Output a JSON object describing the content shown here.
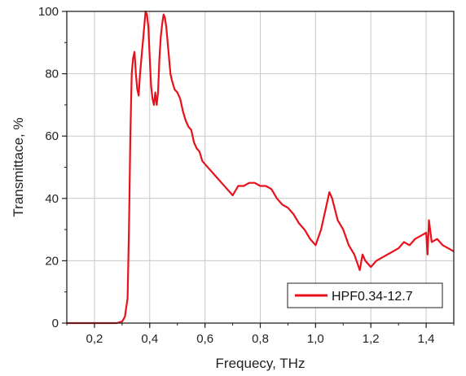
{
  "chart_data": {
    "type": "line",
    "title": "",
    "xlabel": "Frequecy, THz",
    "ylabel": "Transmittace, %",
    "xlim": [
      0.1,
      1.5
    ],
    "ylim": [
      0,
      100
    ],
    "x_ticks": [
      0.2,
      0.4,
      0.6,
      0.8,
      1.0,
      1.2,
      1.4
    ],
    "x_tick_labels": [
      "0,2",
      "0,4",
      "0,6",
      "0,8",
      "1,0",
      "1,2",
      "1,4"
    ],
    "y_ticks": [
      0,
      20,
      40,
      60,
      80,
      100
    ],
    "y_tick_labels": [
      "0",
      "20",
      "40",
      "60",
      "80",
      "100"
    ],
    "grid": true,
    "legend_position": "bottom-right",
    "series": [
      {
        "name": "HPF0.34-12.7",
        "color": "#e8101a",
        "x": [
          0.1,
          0.15,
          0.2,
          0.25,
          0.28,
          0.3,
          0.31,
          0.32,
          0.325,
          0.33,
          0.335,
          0.34,
          0.345,
          0.35,
          0.355,
          0.36,
          0.365,
          0.37,
          0.375,
          0.38,
          0.385,
          0.39,
          0.395,
          0.4,
          0.405,
          0.41,
          0.415,
          0.42,
          0.425,
          0.43,
          0.435,
          0.44,
          0.445,
          0.45,
          0.455,
          0.46,
          0.465,
          0.47,
          0.475,
          0.48,
          0.49,
          0.5,
          0.51,
          0.52,
          0.53,
          0.54,
          0.55,
          0.56,
          0.57,
          0.58,
          0.59,
          0.6,
          0.62,
          0.64,
          0.66,
          0.68,
          0.7,
          0.72,
          0.74,
          0.76,
          0.78,
          0.8,
          0.82,
          0.84,
          0.86,
          0.88,
          0.9,
          0.92,
          0.94,
          0.96,
          0.98,
          1.0,
          1.02,
          1.04,
          1.05,
          1.06,
          1.08,
          1.1,
          1.12,
          1.14,
          1.16,
          1.17,
          1.18,
          1.2,
          1.22,
          1.24,
          1.26,
          1.28,
          1.3,
          1.32,
          1.34,
          1.36,
          1.38,
          1.4,
          1.405,
          1.41,
          1.42,
          1.44,
          1.46,
          1.48,
          1.5
        ],
        "y": [
          0,
          0,
          0,
          0,
          0,
          0.5,
          2,
          8,
          30,
          60,
          80,
          85,
          87,
          80,
          75,
          73,
          80,
          85,
          90,
          95,
          100,
          99,
          95,
          85,
          76,
          72,
          70,
          74,
          70,
          74,
          85,
          92,
          96,
          99,
          98,
          95,
          90,
          85,
          80,
          78,
          75,
          74,
          72,
          68,
          65,
          63,
          62,
          58,
          56,
          55,
          52,
          51,
          49,
          47,
          45,
          43,
          41,
          44,
          44,
          45,
          45,
          44,
          44,
          43,
          40,
          38,
          37,
          35,
          32,
          30,
          27,
          25,
          30,
          38,
          42,
          40,
          33,
          30,
          25,
          22,
          17,
          22,
          20,
          18,
          20,
          21,
          22,
          23,
          24,
          26,
          25,
          27,
          28,
          29,
          22,
          33,
          26,
          27,
          25,
          24,
          23
        ]
      }
    ]
  }
}
